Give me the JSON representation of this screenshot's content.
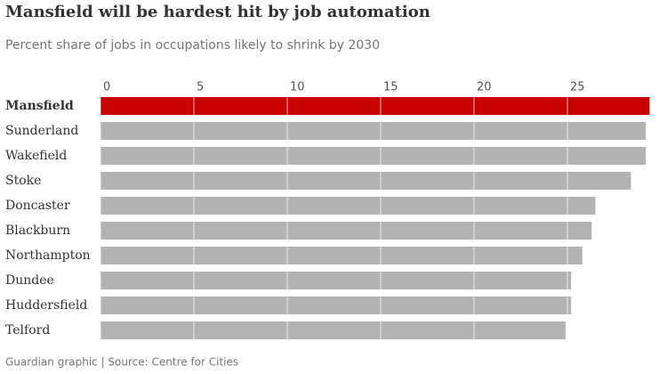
{
  "chart_data": {
    "type": "hbar",
    "title": "Mansfield will be hardest hit by job automation",
    "subtitle": "Percent share of jobs in occupations likely to shrink by 2030",
    "source": "Guardian graphic | Source: Centre for Cities",
    "categories": [
      "Mansfield",
      "Sunderland",
      "Wakefield",
      "Stoke",
      "Doncaster",
      "Blackburn",
      "Northampton",
      "Dundee",
      "Huddersfield",
      "Telford"
    ],
    "values": [
      29.4,
      29.2,
      29.2,
      28.4,
      26.5,
      26.3,
      25.8,
      25.2,
      25.2,
      24.9
    ],
    "colors": [
      "#c70000",
      "#b3b3b3",
      "#b3b3b3",
      "#b3b3b3",
      "#b3b3b3",
      "#b3b3b3",
      "#b3b3b3",
      "#b3b3b3",
      "#b3b3b3",
      "#b3b3b3"
    ],
    "xlim": [
      0,
      30
    ],
    "xticks": [
      0,
      5,
      10,
      15,
      20,
      25
    ],
    "grid": true
  }
}
